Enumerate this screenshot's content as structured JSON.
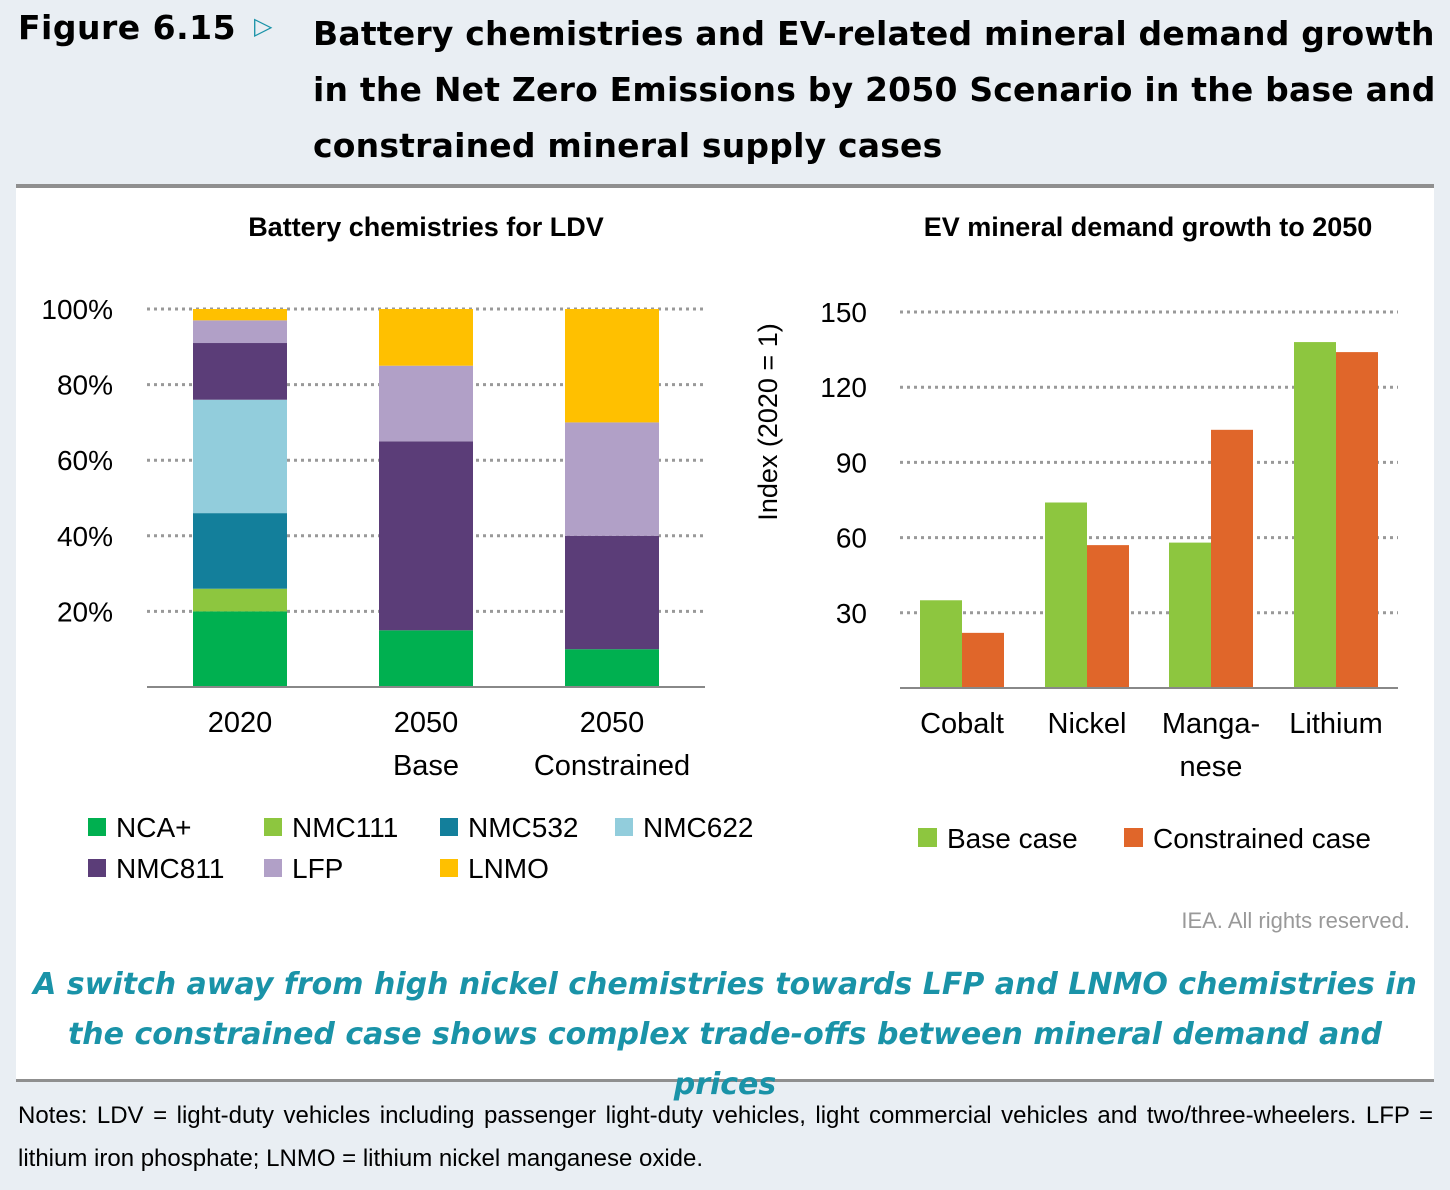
{
  "figure": {
    "label": "Figure 6.15",
    "arrow_icon": "triangle-right-icon",
    "title": "Battery chemistries and EV-related mineral demand growth in the Net Zero Emissions by 2050 Scenario in the base and constrained mineral supply cases"
  },
  "rights": "IEA. All rights reserved.",
  "takeaway": "A switch away from high nickel chemistries towards LFP and LNMO chemistries in the constrained case shows complex trade-offs between mineral demand and prices",
  "notes": "Notes: LDV = light-duty vehicles including passenger light-duty vehicles, light commercial vehicles and two/three-wheelers. LFP = lithium iron phosphate; LNMO = lithium nickel manganese oxide.",
  "chart_data": [
    {
      "type": "bar",
      "stacked": true,
      "title": "Battery chemistries for LDV",
      "categories": [
        [
          "2020"
        ],
        [
          "2050",
          "Base"
        ],
        [
          "2050",
          "Constrained"
        ]
      ],
      "ylim": [
        0,
        100
      ],
      "yticks": [
        "20%",
        "40%",
        "60%",
        "80%",
        "100%"
      ],
      "ytick_values": [
        20,
        40,
        60,
        80,
        100
      ],
      "grid": true,
      "legend_position": "bottom",
      "series": [
        {
          "name": "NCA+",
          "color": "#00b050",
          "values": [
            20,
            15,
            10
          ]
        },
        {
          "name": "NMC111",
          "color": "#8dc63f",
          "values": [
            6,
            0,
            0
          ]
        },
        {
          "name": "NMC532",
          "color": "#137f9b",
          "values": [
            20,
            0,
            0
          ]
        },
        {
          "name": "NMC622",
          "color": "#92cddc",
          "values": [
            30,
            0,
            0
          ]
        },
        {
          "name": "NMC811",
          "color": "#5b3d78",
          "values": [
            15,
            50,
            30
          ]
        },
        {
          "name": "LFP",
          "color": "#b1a0c7",
          "values": [
            6,
            20,
            30
          ]
        },
        {
          "name": "LNMO",
          "color": "#ffc000",
          "values": [
            3,
            15,
            30
          ]
        }
      ]
    },
    {
      "type": "bar",
      "title": "EV mineral demand growth to 2050",
      "ylabel": "Index (2020 = 1)",
      "categories": [
        [
          "Cobalt"
        ],
        [
          "Nickel"
        ],
        [
          "Manga-",
          "nese"
        ],
        [
          "Lithium"
        ]
      ],
      "ylim": [
        0,
        150
      ],
      "yticks": [
        "30",
        "60",
        "90",
        "120",
        "150"
      ],
      "ytick_values": [
        30,
        60,
        90,
        120,
        150
      ],
      "grid": true,
      "legend_position": "bottom",
      "series": [
        {
          "name": "Base case",
          "color": "#8dc63f",
          "values": [
            35,
            74,
            58,
            138
          ]
        },
        {
          "name": "Constrained case",
          "color": "#e0662a",
          "values": [
            22,
            57,
            103,
            134
          ]
        }
      ]
    }
  ]
}
